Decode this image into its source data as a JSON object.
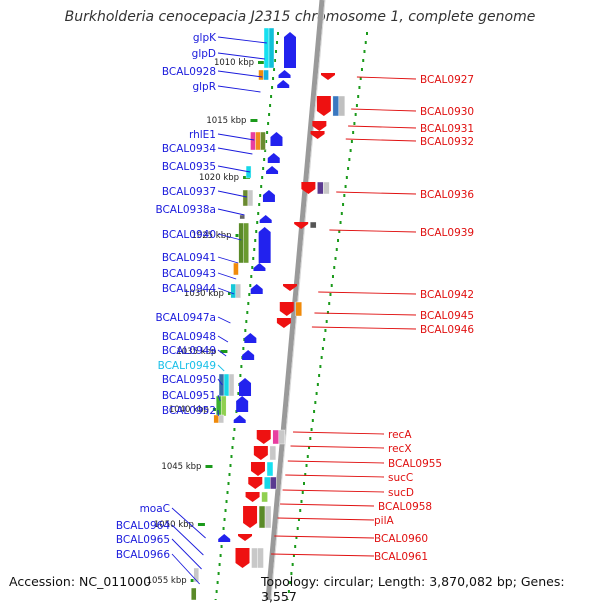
{
  "title": "Burkholderia cenocepacia J2315 chromosome 1, complete genome",
  "footer": {
    "accession": "Accession: NC_011000",
    "topology": "Topology: circular; Length: 3,870,082 bp; Genes: 3,557"
  },
  "colors": {
    "left_label": "#1a1adc",
    "right_label": "#e01010",
    "rna_label": "#19c0e8",
    "backbone": "#9a9a9a",
    "dots": "#1b9a1b",
    "forward_strand": "#2222ee",
    "reverse_strand": "#ee1111"
  },
  "kbp_ticks": [
    "1010 kbp",
    "1015 kbp",
    "1020 kbp",
    "1025 kbp",
    "1030 kbp",
    "1035 kbp",
    "1040 kbp",
    "1045 kbp",
    "1050 kbp",
    "1055 kbp"
  ],
  "left_genes": [
    "glpK",
    "glpD",
    "BCAL0928",
    "glpR",
    "rhlE1",
    "BCAL0934",
    "BCAL0935",
    "BCAL0937",
    "BCAL0938a",
    "BCAL0940",
    "BCAL0941",
    "BCAL0943",
    "BCAL0944",
    "BCAL0947a",
    "BCAL0948",
    "BCAL0949",
    "BCALr0949",
    "BCAL0950",
    "BCAL0951",
    "BCAL0952",
    "moaC",
    "BCAL0964",
    "BCAL0965",
    "BCAL0966"
  ],
  "right_genes": [
    "BCAL0927",
    "BCAL0930",
    "BCAL0931",
    "BCAL0932",
    "BCAL0936",
    "BCAL0939",
    "BCAL0942",
    "BCAL0945",
    "BCAL0946",
    "recA",
    "recX",
    "BCAL0955",
    "sucC",
    "sucD",
    "BCAL0958",
    "pilA",
    "BCAL0960",
    "BCAL0961"
  ],
  "rna_genes": [
    "BCALr0949"
  ]
}
